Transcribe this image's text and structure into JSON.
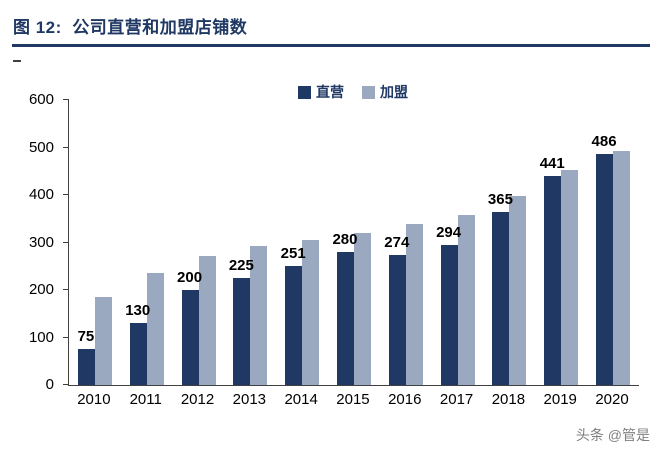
{
  "header": {
    "title": "图 12:  公司直营和加盟店铺数"
  },
  "watermark": {
    "text": "头条 @管是"
  },
  "chart_data": {
    "type": "bar",
    "title": "公司直营和加盟店铺数",
    "categories": [
      "2010",
      "2011",
      "2012",
      "2013",
      "2014",
      "2015",
      "2016",
      "2017",
      "2018",
      "2019",
      "2020"
    ],
    "series": [
      {
        "name": "直营",
        "color": "#1F3864",
        "values": [
          75,
          130,
          200,
          225,
          251,
          280,
          274,
          294,
          365,
          441,
          486
        ],
        "data_labels": true
      },
      {
        "name": "加盟",
        "color": "#9AA9BF",
        "values": [
          185,
          235,
          272,
          293,
          305,
          320,
          338,
          357,
          398,
          452,
          492
        ],
        "data_labels": false
      }
    ],
    "xlabel": "",
    "ylabel": "",
    "ylim": [
      0,
      600
    ],
    "yticks": [
      0,
      100,
      200,
      300,
      400,
      500,
      600
    ],
    "grid": false,
    "legend_position": "top-center"
  }
}
